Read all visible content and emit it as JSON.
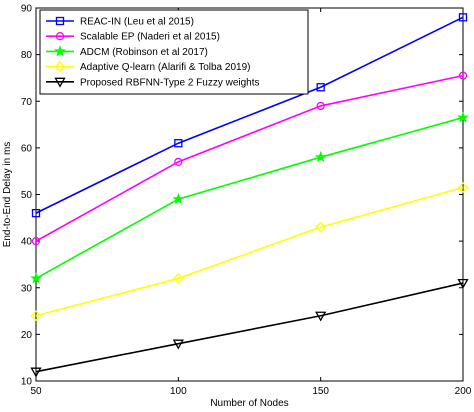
{
  "chart_data": {
    "type": "line",
    "xlabel": "Number of Nodes",
    "ylabel": "End-to-End Delay in ms",
    "x": [
      50,
      100,
      150,
      200
    ],
    "xlim": [
      50,
      200
    ],
    "ylim": [
      10,
      90
    ],
    "xticks": [
      "50",
      "100",
      "150",
      "200"
    ],
    "yticks": [
      "10",
      "20",
      "30",
      "40",
      "50",
      "60",
      "70",
      "80",
      "90"
    ],
    "grid": false,
    "legend_position": "top-left",
    "series": [
      {
        "name": "REAC-IN (Leu et al 2015)",
        "values": [
          46,
          61,
          73,
          88
        ],
        "color": "#0000ff",
        "marker": "square"
      },
      {
        "name": "Scalable EP (Naderi et al 2015)",
        "values": [
          40,
          57,
          69,
          75.5
        ],
        "color": "#ff00ff",
        "marker": "circle"
      },
      {
        "name": "ADCM (Robinson et al 2017)",
        "values": [
          32,
          49,
          58,
          66.5
        ],
        "color": "#00ff00",
        "marker": "star"
      },
      {
        "name": "Adaptive Q-learn (Alarifi & Tolba 2019)",
        "values": [
          24,
          32,
          43,
          51.5
        ],
        "color": "#ffff00",
        "marker": "diamond"
      },
      {
        "name": "Proposed RBFNN-Type 2 Fuzzy weights",
        "values": [
          12,
          18,
          24,
          31
        ],
        "color": "#000000",
        "marker": "triangle-down"
      }
    ]
  }
}
